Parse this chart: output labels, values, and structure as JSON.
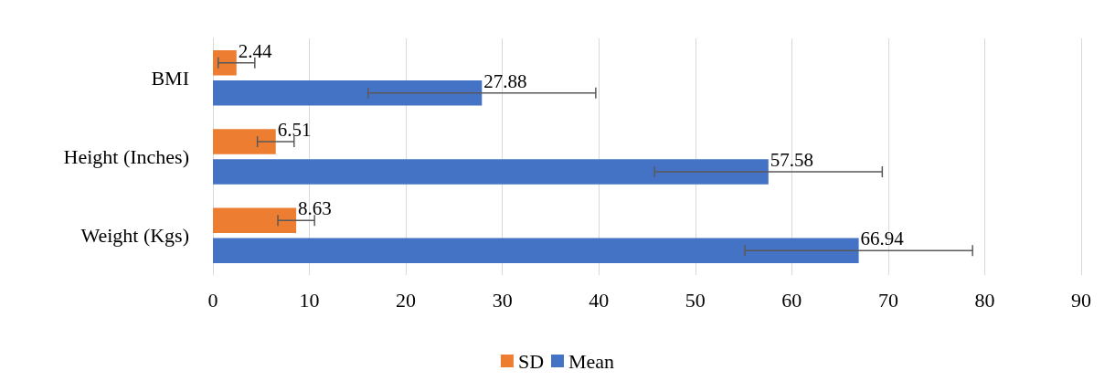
{
  "chart_data": {
    "type": "bar",
    "orientation": "horizontal",
    "categories": [
      "BMI",
      "Height (Inches)",
      "Weight (Kgs)"
    ],
    "series": [
      {
        "name": "SD",
        "color": "#ed7d31",
        "values": [
          2.44,
          6.51,
          8.63
        ],
        "errors": [
          1.9,
          1.9,
          1.9
        ]
      },
      {
        "name": "Mean",
        "color": "#4472c4",
        "values": [
          27.88,
          57.58,
          66.94
        ],
        "errors": [
          11.8,
          11.8,
          11.8
        ]
      }
    ],
    "xlim": [
      0,
      90
    ],
    "xticks": [
      0,
      10,
      20,
      30,
      40,
      50,
      60,
      70,
      80,
      90
    ],
    "grid": "x",
    "legend": "bottom",
    "data_labels": true
  }
}
